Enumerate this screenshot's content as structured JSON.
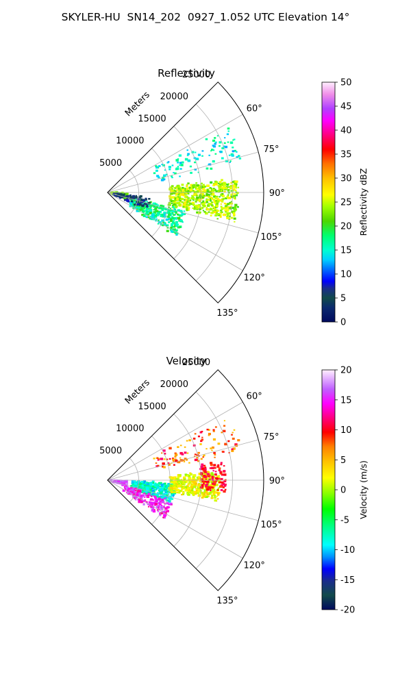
{
  "figure_title": "SKYLER-HU  SN14_202  0927_1.052 UTC Elevation 14°",
  "colors": {
    "grid": "#b0b0b0",
    "axis": "#000000"
  },
  "chart_data": [
    {
      "type": "heatmap",
      "projection": "polar-sector",
      "title": "Reflectivity",
      "radial_axis_label": "Meters",
      "radial_ticks": [
        "5000",
        "10000",
        "15000",
        "20000",
        "25000"
      ],
      "radial_tick_values": [
        5000,
        10000,
        15000,
        20000,
        25000
      ],
      "rlim": [
        0,
        25000
      ],
      "angle_ticks": [
        "60°",
        "75°",
        "90°",
        "105°",
        "120°",
        "135°"
      ],
      "angle_tick_values": [
        60,
        75,
        90,
        105,
        120,
        135
      ],
      "theta_range_deg": [
        45,
        135
      ],
      "grid": true,
      "colorbar": {
        "label": "Reflectivity dBZ",
        "ticks": [
          "0",
          "5",
          "10",
          "15",
          "20",
          "25",
          "30",
          "35",
          "40",
          "45",
          "50"
        ],
        "range": [
          0,
          50
        ],
        "colormap": "pyart_NWSRef-like"
      },
      "echo_regions_approx_value": [
        {
          "name": "main band",
          "value": 24
        },
        {
          "name": "near-radar cluster",
          "value": 22
        },
        {
          "name": "lower cells",
          "value": 17
        },
        {
          "name": "scattered north",
          "value": 15
        },
        {
          "name": "weak near-field",
          "value": 6
        }
      ]
    },
    {
      "type": "heatmap",
      "projection": "polar-sector",
      "title": "Velocity",
      "radial_axis_label": "Meters",
      "radial_ticks": [
        "5000",
        "10000",
        "15000",
        "20000",
        "25000"
      ],
      "radial_tick_values": [
        5000,
        10000,
        15000,
        20000,
        25000
      ],
      "rlim": [
        0,
        25000
      ],
      "angle_ticks": [
        "60°",
        "75°",
        "90°",
        "105°",
        "120°",
        "135°"
      ],
      "angle_tick_values": [
        60,
        75,
        90,
        105,
        120,
        135
      ],
      "theta_range_deg": [
        45,
        135
      ],
      "grid": true,
      "colorbar": {
        "label": "Velocity (m/s)",
        "ticks": [
          "-20",
          "-15",
          "-10",
          "-5",
          "0",
          "5",
          "10",
          "15",
          "20"
        ],
        "range": [
          -20,
          20
        ],
        "colormap": "pyart_BuDRd-like"
      },
      "echo_regions_approx_value": [
        {
          "name": "main band inner",
          "value": -8
        },
        {
          "name": "main band outer",
          "value": 2
        },
        {
          "name": "outer core",
          "value": 10
        },
        {
          "name": "near-radar cluster",
          "value": 17
        },
        {
          "name": "lower cells",
          "value": 15
        },
        {
          "name": "north cells",
          "value": 8
        }
      ]
    }
  ]
}
